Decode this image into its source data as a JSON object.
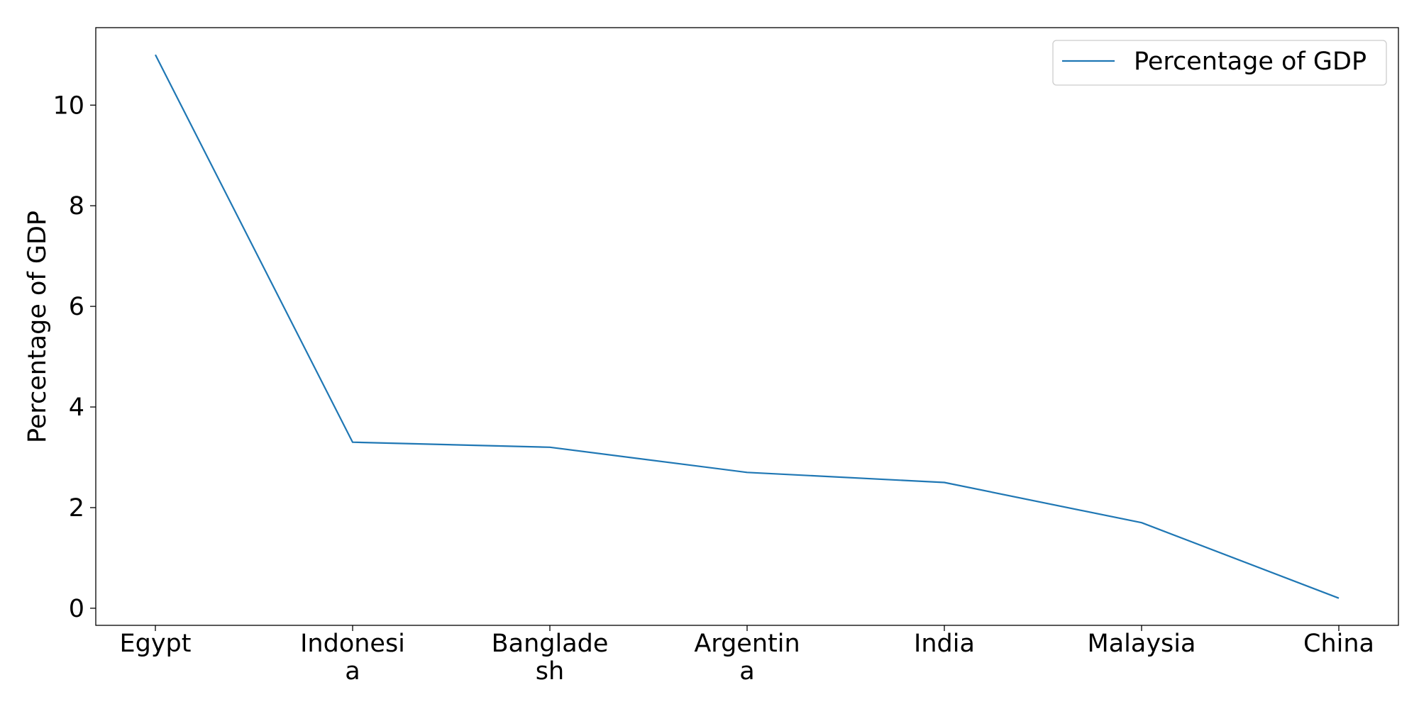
{
  "chart_data": {
    "type": "line",
    "title": "",
    "xlabel": "",
    "ylabel": "Percentage of GDP",
    "categories": [
      "Egypt",
      "Indonesia",
      "Bangladesh",
      "Argentina",
      "India",
      "Malaysia",
      "China"
    ],
    "category_labels": [
      [
        "Egypt"
      ],
      [
        "Indonesi",
        "a"
      ],
      [
        "Banglade",
        "sh"
      ],
      [
        "Argentin",
        "a"
      ],
      [
        "India"
      ],
      [
        "Malaysia"
      ],
      [
        "China"
      ]
    ],
    "series": [
      {
        "name": "Percentage of GDP",
        "values": [
          11.0,
          3.3,
          3.2,
          2.7,
          2.5,
          1.7,
          0.2
        ],
        "color": "#1f77b4"
      }
    ],
    "ylim": [
      -0.34,
      11.54
    ],
    "yticks": [
      0,
      2,
      4,
      6,
      8,
      10
    ],
    "yticks_labels": [
      "0",
      "2",
      "4",
      "6",
      "8",
      "10"
    ],
    "grid": false,
    "legend_position": "top-right"
  }
}
